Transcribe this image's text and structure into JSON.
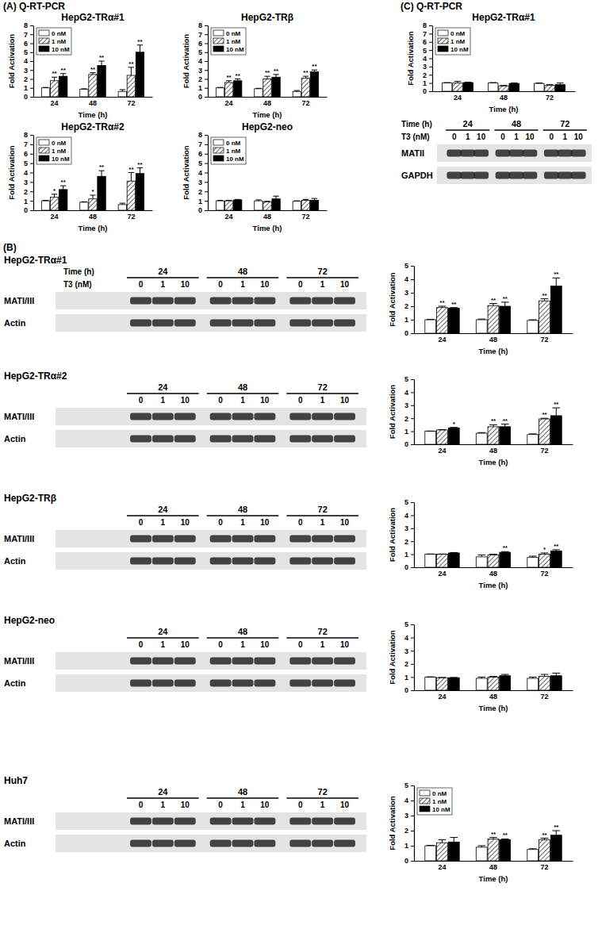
{
  "panel_labels": [
    "(A) Q-RT-PCR",
    "(B)",
    "(C) Q-RT-PCR"
  ],
  "chart_data": [
    {
      "type": "bar",
      "title": "HepG2-TRα#1",
      "x_label": "Time (h)",
      "y_label": "Fold Activation",
      "categories": [
        "24",
        "48",
        "72"
      ],
      "series": [
        {
          "name": "0 nM",
          "color": "#ffffff",
          "values": [
            1.0,
            0.85,
            0.6
          ],
          "errors": [
            0.05,
            0.05,
            0.2
          ]
        },
        {
          "name": "1 nM",
          "color": "#404040",
          "values": [
            1.8,
            2.5,
            2.4
          ],
          "errors": [
            0.4,
            0.2,
            0.9
          ],
          "significance": [
            "**",
            "**",
            "**"
          ]
        },
        {
          "name": "10 nM",
          "color": "#000000",
          "values": [
            2.3,
            3.5,
            5.0
          ],
          "errors": [
            0.3,
            0.5,
            0.8
          ],
          "significance": [
            "**",
            "**",
            "**"
          ]
        }
      ],
      "ylim": [
        0,
        8
      ],
      "yticks": [
        0,
        1,
        2,
        3,
        4,
        5,
        6,
        7,
        8
      ],
      "legend": "top-left"
    },
    {
      "type": "bar",
      "title": "HepG2-TRβ",
      "x_label": "Time (h)",
      "y_label": "Fold Activation",
      "categories": [
        "24",
        "48",
        "72"
      ],
      "series": [
        {
          "name": "0 nM",
          "color": "#ffffff",
          "values": [
            1.0,
            0.9,
            0.6
          ],
          "errors": [
            0.05,
            0.05,
            0.1
          ]
        },
        {
          "name": "1 nM",
          "color": "#404040",
          "values": [
            1.6,
            2.0,
            2.1
          ],
          "errors": [
            0.2,
            0.3,
            0.2
          ],
          "significance": [
            "**",
            "**",
            "**"
          ]
        },
        {
          "name": "10 nM",
          "color": "#000000",
          "values": [
            1.8,
            2.2,
            2.8
          ],
          "errors": [
            0.2,
            0.3,
            0.2
          ],
          "significance": [
            "**",
            "**",
            "**"
          ]
        }
      ],
      "ylim": [
        0,
        8
      ],
      "yticks": [
        0,
        1,
        2,
        3,
        4,
        5,
        6,
        7,
        8
      ],
      "legend": "top-left"
    },
    {
      "type": "bar",
      "title": "HepG2-TRα#2",
      "x_label": "Time (h)",
      "y_label": "Fold Activation",
      "categories": [
        "24",
        "48",
        "72"
      ],
      "series": [
        {
          "name": "0 nM",
          "color": "#ffffff",
          "values": [
            1.0,
            0.85,
            0.6
          ],
          "errors": [
            0.05,
            0.05,
            0.15
          ]
        },
        {
          "name": "1 nM",
          "color": "#404040",
          "values": [
            1.4,
            1.2,
            3.1
          ],
          "errors": [
            0.3,
            0.4,
            0.9
          ],
          "significance": [
            "*",
            "*",
            "**"
          ]
        },
        {
          "name": "10 nM",
          "color": "#000000",
          "values": [
            2.2,
            3.6,
            3.9
          ],
          "errors": [
            0.4,
            0.6,
            0.6
          ],
          "significance": [
            "**",
            "**",
            "**"
          ]
        }
      ],
      "ylim": [
        0,
        8
      ],
      "yticks": [
        0,
        1,
        2,
        3,
        4,
        5,
        6,
        7,
        8
      ],
      "legend": "top-left"
    },
    {
      "type": "bar",
      "title": "HepG2-neo",
      "x_label": "Time (h)",
      "y_label": "Fold Activation",
      "categories": [
        "24",
        "48",
        "72"
      ],
      "series": [
        {
          "name": "0 nM",
          "color": "#ffffff",
          "values": [
            1.0,
            1.0,
            0.95
          ],
          "errors": [
            0.05,
            0.1,
            0.05
          ]
        },
        {
          "name": "1 nM",
          "color": "#404040",
          "values": [
            1.0,
            0.9,
            1.05
          ],
          "errors": [
            0.05,
            0.05,
            0.1
          ]
        },
        {
          "name": "10 nM",
          "color": "#000000",
          "values": [
            1.1,
            1.2,
            1.05
          ],
          "errors": [
            0.05,
            0.3,
            0.2
          ]
        }
      ],
      "ylim": [
        0,
        8
      ],
      "yticks": [
        0,
        1,
        2,
        3,
        4,
        5,
        6,
        7,
        8
      ],
      "legend": "top-left"
    },
    {
      "type": "bar",
      "x_label": "Time (h)",
      "y_label": "Fold Activation",
      "categories": [
        "24",
        "48",
        "72"
      ],
      "series": [
        {
          "name": "0 nM",
          "color": "#ffffff",
          "values": [
            1.0,
            1.0,
            0.95
          ],
          "errors": [
            0.02,
            0.05,
            0.05
          ]
        },
        {
          "name": "1 nM",
          "color": "#404040",
          "values": [
            1.9,
            2.05,
            2.4
          ],
          "errors": [
            0.1,
            0.15,
            0.15
          ],
          "significance": [
            "**",
            "**",
            "**"
          ]
        },
        {
          "name": "10 nM",
          "color": "#000000",
          "values": [
            1.85,
            2.0,
            3.5
          ],
          "errors": [
            0.05,
            0.3,
            0.6
          ],
          "significance": [
            "**",
            "**",
            "**"
          ]
        }
      ],
      "ylim": [
        0,
        5
      ],
      "yticks": [
        0,
        1,
        2,
        3,
        4,
        5
      ]
    },
    {
      "type": "bar",
      "x_label": "Time (h)",
      "y_label": "Fold Activation",
      "categories": [
        "24",
        "48",
        "72"
      ],
      "series": [
        {
          "name": "0 nM",
          "color": "#ffffff",
          "values": [
            1.0,
            0.85,
            0.75
          ],
          "errors": [
            0.02,
            0.05,
            0.05
          ]
        },
        {
          "name": "1 nM",
          "color": "#404040",
          "values": [
            1.1,
            1.35,
            1.95
          ],
          "errors": [
            0.03,
            0.15,
            0.05
          ],
          "significance": [
            null,
            "**",
            "**"
          ]
        },
        {
          "name": "10 nM",
          "color": "#000000",
          "values": [
            1.25,
            1.35,
            2.2
          ],
          "errors": [
            0.05,
            0.2,
            0.6
          ],
          "significance": [
            "*",
            "**",
            "**"
          ]
        }
      ],
      "ylim": [
        0,
        5
      ],
      "yticks": [
        0,
        1,
        2,
        3,
        4,
        5
      ]
    },
    {
      "type": "bar",
      "x_label": "Time (h)",
      "y_label": "Fold Activation",
      "categories": [
        "24",
        "48",
        "72"
      ],
      "series": [
        {
          "name": "0 nM",
          "color": "#ffffff",
          "values": [
            1.0,
            0.8,
            0.75
          ],
          "errors": [
            0.02,
            0.15,
            0.1
          ]
        },
        {
          "name": "1 nM",
          "color": "#404040",
          "values": [
            1.0,
            0.95,
            1.0
          ],
          "errors": [
            0.02,
            0.05,
            0.1
          ],
          "significance": [
            null,
            null,
            "*"
          ]
        },
        {
          "name": "10 nM",
          "color": "#000000",
          "values": [
            1.1,
            1.15,
            1.25
          ],
          "errors": [
            0.03,
            0.05,
            0.1
          ],
          "significance": [
            null,
            "**",
            "**"
          ]
        }
      ],
      "ylim": [
        0,
        5
      ],
      "yticks": [
        0,
        1,
        2,
        3,
        4,
        5
      ]
    },
    {
      "type": "bar",
      "x_label": "Time (h)",
      "y_label": "Fold Activation",
      "categories": [
        "24",
        "48",
        "72"
      ],
      "series": [
        {
          "name": "0 nM",
          "color": "#ffffff",
          "values": [
            1.0,
            0.9,
            0.9
          ],
          "errors": [
            0.02,
            0.1,
            0.1
          ]
        },
        {
          "name": "1 nM",
          "color": "#404040",
          "values": [
            0.95,
            1.0,
            1.05
          ],
          "errors": [
            0.02,
            0.05,
            0.15
          ]
        },
        {
          "name": "10 nM",
          "color": "#000000",
          "values": [
            0.95,
            1.1,
            1.1
          ],
          "errors": [
            0.02,
            0.1,
            0.2
          ]
        }
      ],
      "ylim": [
        0,
        5
      ],
      "yticks": [
        0,
        1,
        2,
        3,
        4,
        5
      ]
    },
    {
      "type": "bar",
      "x_label": "Time (h)",
      "y_label": "Fold Activation",
      "categories": [
        "24",
        "48",
        "72"
      ],
      "series": [
        {
          "name": "0 nM",
          "color": "#ffffff",
          "values": [
            1.0,
            0.9,
            0.75
          ],
          "errors": [
            0.02,
            0.1,
            0.05
          ]
        },
        {
          "name": "1 nM",
          "color": "#404040",
          "values": [
            1.2,
            1.45,
            1.4
          ],
          "errors": [
            0.2,
            0.1,
            0.1
          ],
          "significance": [
            null,
            "**",
            "**"
          ]
        },
        {
          "name": "10 nM",
          "color": "#000000",
          "values": [
            1.25,
            1.4,
            1.7
          ],
          "errors": [
            0.3,
            0.05,
            0.3
          ],
          "significance": [
            null,
            "**",
            "**"
          ]
        }
      ],
      "ylim": [
        0,
        5
      ],
      "yticks": [
        0,
        1,
        2,
        3,
        4,
        5
      ],
      "legend": "top-left"
    },
    {
      "type": "bar",
      "title": "HepG2-TRα#1",
      "x_label": "Time (h)",
      "y_label": "Fold Activation",
      "categories": [
        "24",
        "48",
        "72"
      ],
      "series": [
        {
          "name": "0 nM",
          "color": "#ffffff",
          "values": [
            1.0,
            1.0,
            0.95
          ],
          "errors": [
            0.05,
            0.05,
            0.05
          ]
        },
        {
          "name": "1 nM",
          "color": "#404040",
          "values": [
            1.0,
            0.65,
            0.7
          ],
          "errors": [
            0.2,
            0.05,
            0.1
          ]
        },
        {
          "name": "10 nM",
          "color": "#000000",
          "values": [
            1.05,
            0.95,
            0.8
          ],
          "errors": [
            0.05,
            0.05,
            0.2
          ]
        }
      ],
      "ylim": [
        0,
        8
      ],
      "yticks": [
        0,
        1,
        2,
        3,
        4,
        5,
        6,
        7,
        8
      ],
      "legend": "top-left"
    }
  ],
  "blots": [
    {
      "cell_line": "HepG2-TRα#1",
      "time_label": "Time (h)",
      "dose_label": "T3 (nM)",
      "times": [
        "24",
        "48",
        "72"
      ],
      "doses": [
        "0",
        "1",
        "10"
      ],
      "rows": [
        "MATI/III",
        "Actin"
      ]
    },
    {
      "cell_line": "HepG2-TRα#2",
      "times": [
        "24",
        "48",
        "72"
      ],
      "doses": [
        "0",
        "1",
        "10"
      ],
      "rows": [
        "MATI/III",
        "Actin"
      ]
    },
    {
      "cell_line": "HepG2-TRβ",
      "times": [
        "24",
        "48",
        "72"
      ],
      "doses": [
        "0",
        "1",
        "10"
      ],
      "rows": [
        "MATI/III",
        "Actin"
      ]
    },
    {
      "cell_line": "HepG2-neo",
      "times": [
        "24",
        "48",
        "72"
      ],
      "doses": [
        "0",
        "1",
        "10"
      ],
      "rows": [
        "MATI/III",
        "Actin"
      ]
    },
    {
      "cell_line": "Huh7",
      "times": [
        "24",
        "48",
        "72"
      ],
      "doses": [
        "0",
        "1",
        "10"
      ],
      "rows": [
        "MATI/III",
        "Actin"
      ]
    },
    {
      "time_label": "Time (h)",
      "dose_label": "T3 (nM)",
      "times": [
        "24",
        "48",
        "72"
      ],
      "doses": [
        "0",
        "1",
        "10"
      ],
      "rows": [
        "MATII",
        "GAPDH"
      ]
    }
  ]
}
